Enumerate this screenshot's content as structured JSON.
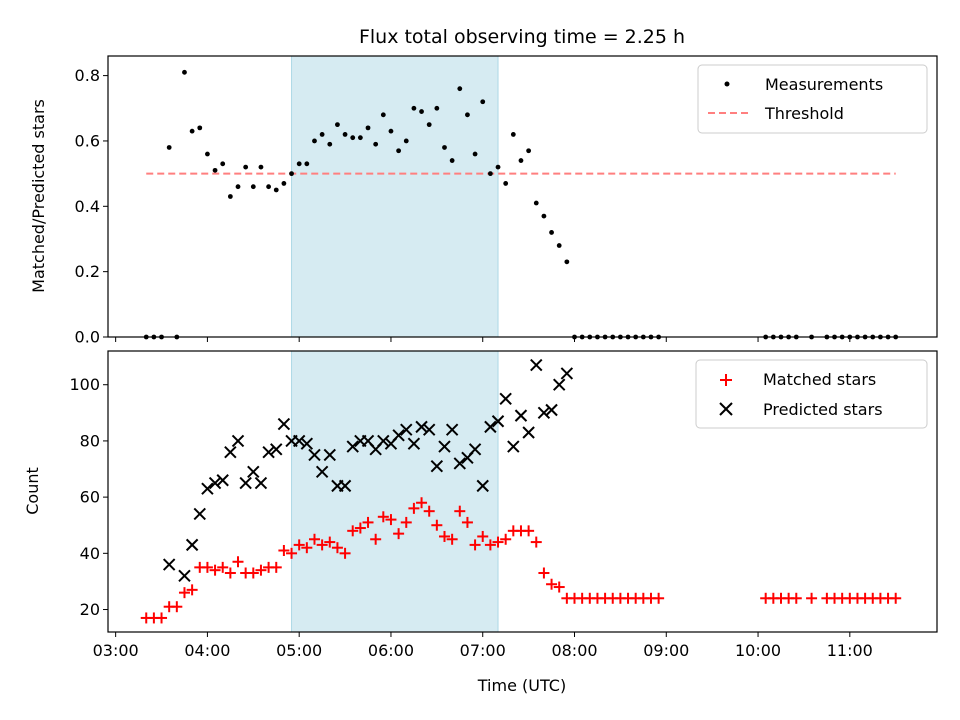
{
  "chart_data": {
    "type": "scatter",
    "title": "Flux total observing time = 2.25 h",
    "xlabel": "Time (UTC)",
    "x_ticks": [
      "03:00",
      "04:00",
      "05:00",
      "06:00",
      "07:00",
      "08:00",
      "09:00",
      "10:00",
      "11:00"
    ],
    "x_range": [
      "02:55",
      "11:57"
    ],
    "highlight_span": {
      "start": "04:55",
      "end": "07:10",
      "color": "#add8e6"
    },
    "panels": [
      {
        "ylabel": "Matched/Predicted stars",
        "ylim": [
          0,
          0.86
        ],
        "yticks": [
          "0.0",
          "0.2",
          "0.4",
          "0.6",
          "0.8"
        ],
        "ytick_values": [
          0,
          0.2,
          0.4,
          0.6,
          0.8
        ],
        "legend_position": "top-right",
        "threshold": {
          "name": "Threshold",
          "value": 0.5,
          "x_start": "03:20",
          "x_end": "11:30",
          "color": "#ff7f7f"
        },
        "series": [
          {
            "name": "Measurements",
            "marker": "dot",
            "color": "#000000",
            "x": [
              "03:20",
              "03:25",
              "03:30",
              "03:35",
              "03:40",
              "03:45",
              "03:50",
              "03:55",
              "04:00",
              "04:05",
              "04:10",
              "04:15",
              "04:20",
              "04:25",
              "04:30",
              "04:35",
              "04:40",
              "04:45",
              "04:50",
              "04:55",
              "05:00",
              "05:05",
              "05:10",
              "05:15",
              "05:20",
              "05:25",
              "05:30",
              "05:35",
              "05:40",
              "05:45",
              "05:50",
              "05:55",
              "06:00",
              "06:05",
              "06:10",
              "06:15",
              "06:20",
              "06:25",
              "06:30",
              "06:35",
              "06:40",
              "06:45",
              "06:50",
              "06:55",
              "07:00",
              "07:05",
              "07:10",
              "07:15",
              "07:20",
              "07:25",
              "07:30",
              "07:35",
              "07:40",
              "07:45",
              "07:50",
              "07:55",
              "08:00",
              "08:05",
              "08:10",
              "08:15",
              "08:20",
              "08:25",
              "08:30",
              "08:35",
              "08:40",
              "08:45",
              "08:50",
              "08:55",
              "10:05",
              "10:10",
              "10:15",
              "10:20",
              "10:25",
              "10:35",
              "10:45",
              "10:50",
              "10:55",
              "11:00",
              "11:05",
              "11:10",
              "11:15",
              "11:20",
              "11:25",
              "11:30"
            ],
            "y": [
              0,
              0,
              0,
              0.58,
              0,
              0.81,
              0.63,
              0.64,
              0.56,
              0.51,
              0.53,
              0.43,
              0.46,
              0.52,
              0.46,
              0.52,
              0.46,
              0.45,
              0.47,
              0.5,
              0.53,
              0.53,
              0.6,
              0.62,
              0.59,
              0.65,
              0.62,
              0.61,
              0.61,
              0.64,
              0.59,
              0.68,
              0.63,
              0.57,
              0.6,
              0.7,
              0.69,
              0.65,
              0.7,
              0.58,
              0.54,
              0.76,
              0.68,
              0.56,
              0.72,
              0.5,
              0.52,
              0.47,
              0.62,
              0.54,
              0.57,
              0.41,
              0.37,
              0.32,
              0.28,
              0.23,
              0,
              0,
              0,
              0,
              0,
              0,
              0,
              0,
              0,
              0,
              0,
              0,
              0,
              0,
              0,
              0,
              0,
              0,
              0,
              0,
              0,
              0,
              0,
              0,
              0,
              0,
              0,
              0
            ]
          }
        ]
      },
      {
        "ylabel": "Count",
        "ylim": [
          12,
          112
        ],
        "yticks": [
          "20",
          "40",
          "60",
          "80",
          "100"
        ],
        "ytick_values": [
          20,
          40,
          60,
          80,
          100
        ],
        "legend_position": "top-right",
        "series": [
          {
            "name": "Matched stars",
            "marker": "plus",
            "color": "#ff0000",
            "x": [
              "03:20",
              "03:25",
              "03:30",
              "03:35",
              "03:40",
              "03:45",
              "03:50",
              "03:55",
              "04:00",
              "04:05",
              "04:10",
              "04:15",
              "04:20",
              "04:25",
              "04:30",
              "04:35",
              "04:40",
              "04:45",
              "04:50",
              "04:55",
              "05:00",
              "05:05",
              "05:10",
              "05:15",
              "05:20",
              "05:25",
              "05:30",
              "05:35",
              "05:40",
              "05:45",
              "05:50",
              "05:55",
              "06:00",
              "06:05",
              "06:10",
              "06:15",
              "06:20",
              "06:25",
              "06:30",
              "06:35",
              "06:40",
              "06:45",
              "06:50",
              "06:55",
              "07:00",
              "07:05",
              "07:10",
              "07:15",
              "07:20",
              "07:25",
              "07:30",
              "07:35",
              "07:40",
              "07:45",
              "07:50",
              "07:55",
              "08:00",
              "08:05",
              "08:10",
              "08:15",
              "08:20",
              "08:25",
              "08:30",
              "08:35",
              "08:40",
              "08:45",
              "08:50",
              "08:55",
              "10:05",
              "10:10",
              "10:15",
              "10:20",
              "10:25",
              "10:35",
              "10:45",
              "10:50",
              "10:55",
              "11:00",
              "11:05",
              "11:10",
              "11:15",
              "11:20",
              "11:25",
              "11:30"
            ],
            "y": [
              17,
              17,
              17,
              21,
              21,
              26,
              27,
              35,
              35,
              34,
              35,
              33,
              37,
              33,
              33,
              34,
              35,
              35,
              41,
              40,
              43,
              42,
              45,
              43,
              44,
              42,
              40,
              48,
              49,
              51,
              45,
              53,
              52,
              47,
              51,
              56,
              58,
              55,
              50,
              46,
              45,
              55,
              51,
              43,
              46,
              43,
              44,
              45,
              48,
              48,
              48,
              44,
              33,
              29,
              28,
              24,
              24,
              24,
              24,
              24,
              24,
              24,
              24,
              24,
              24,
              24,
              24,
              24,
              24,
              24,
              24,
              24,
              24,
              24,
              24,
              24,
              24,
              24,
              24,
              24,
              24,
              24,
              24,
              24
            ]
          },
          {
            "name": "Predicted stars",
            "marker": "x",
            "color": "#000000",
            "x": [
              "03:35",
              "03:45",
              "03:50",
              "03:55",
              "04:00",
              "04:05",
              "04:10",
              "04:15",
              "04:20",
              "04:25",
              "04:30",
              "04:35",
              "04:40",
              "04:45",
              "04:50",
              "04:55",
              "05:00",
              "05:05",
              "05:10",
              "05:15",
              "05:20",
              "05:25",
              "05:30",
              "05:35",
              "05:40",
              "05:45",
              "05:50",
              "05:55",
              "06:00",
              "06:05",
              "06:10",
              "06:15",
              "06:20",
              "06:25",
              "06:30",
              "06:35",
              "06:40",
              "06:45",
              "06:50",
              "06:55",
              "07:00",
              "07:05",
              "07:10",
              "07:15",
              "07:20",
              "07:25",
              "07:30",
              "07:35",
              "07:40",
              "07:45",
              "07:50",
              "07:55"
            ],
            "y": [
              36,
              32,
              43,
              54,
              63,
              65,
              66,
              76,
              80,
              65,
              69,
              65,
              76,
              77,
              86,
              80,
              80,
              79,
              75,
              69,
              75,
              64,
              64,
              78,
              80,
              80,
              77,
              80,
              79,
              82,
              84,
              79,
              85,
              84,
              71,
              78,
              84,
              72,
              74,
              77,
              64,
              85,
              87,
              95,
              78,
              89,
              83,
              107,
              90,
              91,
              100,
              104
            ]
          }
        ]
      }
    ]
  }
}
